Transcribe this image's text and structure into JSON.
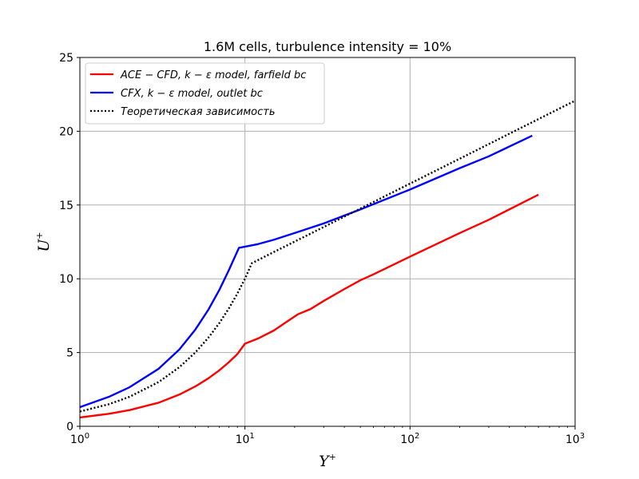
{
  "chart_data": {
    "type": "line",
    "title": "1.6M cells, turbulence intensity = 10%",
    "xlabel": "Y",
    "xlabel_sup": "+",
    "ylabel": "U",
    "ylabel_sup": "+",
    "xscale": "log",
    "xlim": [
      1,
      1000
    ],
    "ylim": [
      0,
      25
    ],
    "x_ticks": [
      {
        "value": 1,
        "base": "10",
        "exp": "0"
      },
      {
        "value": 10,
        "base": "10",
        "exp": "1"
      },
      {
        "value": 100,
        "base": "10",
        "exp": "2"
      },
      {
        "value": 1000,
        "base": "10",
        "exp": "3"
      }
    ],
    "y_ticks": [
      0,
      5,
      10,
      15,
      20,
      25
    ],
    "grid": true,
    "legend_position": "top-left",
    "series": [
      {
        "name": "ACE − CFD, k − ε model, farfield bc",
        "color": "#ff0000",
        "style": "solid",
        "x": [
          1,
          1.5,
          2,
          3,
          4,
          5,
          6,
          7,
          8,
          9,
          10,
          12,
          15,
          18,
          21,
          25,
          30,
          40,
          50,
          60,
          100,
          200,
          300,
          600
        ],
        "y": [
          0.6,
          0.85,
          1.1,
          1.6,
          2.15,
          2.7,
          3.25,
          3.8,
          4.35,
          4.9,
          5.6,
          5.95,
          6.5,
          7.1,
          7.6,
          7.95,
          8.5,
          9.3,
          9.9,
          10.3,
          11.5,
          13.1,
          14.0,
          15.7
        ]
      },
      {
        "name": "CFX, k − ε model, outlet bc",
        "color": "#0000ff",
        "style": "solid",
        "x": [
          1,
          1.5,
          2,
          3,
          4,
          5,
          6,
          7,
          8,
          9.2,
          12,
          15,
          20,
          30,
          50,
          100,
          200,
          300,
          550
        ],
        "y": [
          1.3,
          2.0,
          2.65,
          3.9,
          5.2,
          6.55,
          7.9,
          9.25,
          10.6,
          12.1,
          12.35,
          12.65,
          13.1,
          13.75,
          14.7,
          16.05,
          17.5,
          18.3,
          19.7
        ]
      },
      {
        "name": "Теоретическая зависимость",
        "color": "#000000",
        "style": "dotted",
        "x": [
          1,
          1.5,
          2,
          3,
          4,
          5,
          6,
          7,
          8,
          9,
          10,
          11,
          15,
          20,
          30,
          50,
          100,
          200,
          500,
          1000
        ],
        "y": [
          1.0,
          1.5,
          2.0,
          3.0,
          4.0,
          5.0,
          6.0,
          7.0,
          8.0,
          9.0,
          10.0,
          11.05,
          11.82,
          12.52,
          13.51,
          14.76,
          16.45,
          18.14,
          20.38,
          22.07
        ]
      }
    ]
  }
}
